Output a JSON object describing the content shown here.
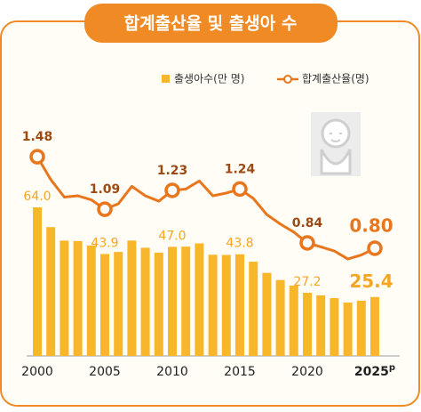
{
  "chart_data": {
    "type": "bar_line",
    "title": "합계출산율 및 출생아 수",
    "categories": [
      "2000",
      null,
      null,
      null,
      null,
      "2005",
      null,
      null,
      null,
      null,
      "2010",
      null,
      null,
      null,
      null,
      "2015",
      null,
      null,
      null,
      null,
      "2020",
      null,
      null,
      null,
      null,
      "2025"
    ],
    "provisional_mark": "p",
    "series": [
      {
        "name": "출생아수(만 명)",
        "color": "#f8b62b",
        "axis": "y",
        "values": [
          64.0,
          55.5,
          49.7,
          49.5,
          47.6,
          43.9,
          44.8,
          49.7,
          46.6,
          44.5,
          47.0,
          47.1,
          48.5,
          43.6,
          43.5,
          43.8,
          40.6,
          35.8,
          32.7,
          30.3,
          27.2,
          26.1,
          24.9,
          23.0,
          23.8,
          25.4
        ],
        "value_labels": [
          "64.0",
          null,
          null,
          null,
          null,
          "43.9",
          null,
          null,
          null,
          null,
          "47.0",
          null,
          null,
          null,
          null,
          "43.8",
          null,
          null,
          null,
          null,
          "27.2",
          null,
          null,
          null,
          null,
          "25.4"
        ]
      },
      {
        "name": "합계출산율(명)",
        "color": "#e8761c",
        "axis": "y2",
        "values": [
          1.48,
          1.31,
          1.18,
          1.19,
          1.16,
          1.09,
          1.13,
          1.26,
          1.19,
          1.15,
          1.23,
          1.24,
          1.3,
          1.19,
          1.21,
          1.24,
          1.17,
          1.05,
          0.98,
          0.92,
          0.84,
          0.81,
          0.78,
          0.72,
          0.75,
          0.8
        ],
        "value_labels": [
          "1.48",
          null,
          null,
          null,
          null,
          "1.09",
          null,
          null,
          null,
          null,
          "1.23",
          null,
          null,
          null,
          null,
          "1.24",
          null,
          null,
          null,
          null,
          "0.84",
          null,
          null,
          null,
          null,
          "0.80"
        ]
      }
    ],
    "ylim": [
      0,
      138
    ],
    "y2lim": [
      0,
      2.38
    ]
  }
}
